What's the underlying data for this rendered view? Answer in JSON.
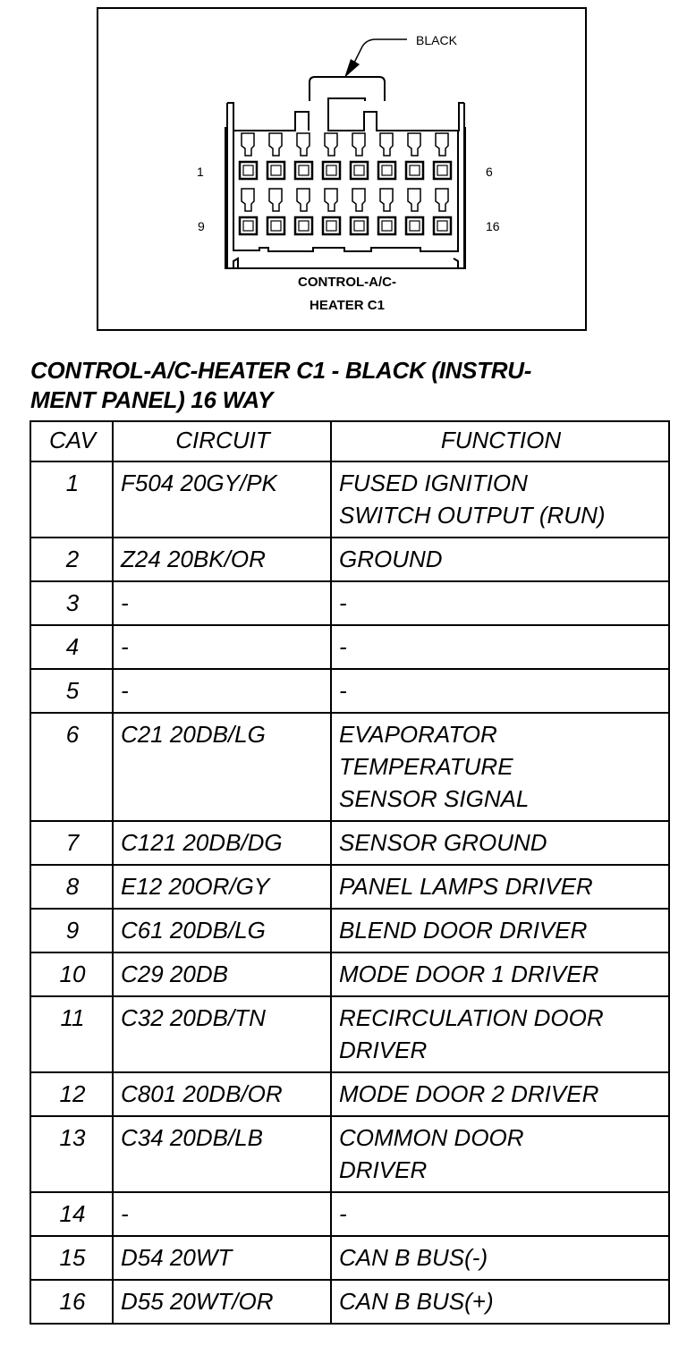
{
  "diagram": {
    "color_callout": "BLACK",
    "pin_labels": {
      "top_left": "1",
      "top_right": "6",
      "bottom_left": "9",
      "bottom_right": "16"
    },
    "caption_line1": "CONTROL-A/C-",
    "caption_line2": "HEATER C1"
  },
  "title": "CONTROL-A/C-HEATER C1 - BLACK (INSTRU-\nMENT PANEL) 16 WAY",
  "table": {
    "headers": {
      "cav": "CAV",
      "circuit": "CIRCUIT",
      "function": "FUNCTION"
    },
    "rows": [
      {
        "cav": "1",
        "circuit": "F504 20GY/PK",
        "function": "FUSED IGNITION\nSWITCH OUTPUT (RUN)"
      },
      {
        "cav": "2",
        "circuit": "Z24 20BK/OR",
        "function": "GROUND"
      },
      {
        "cav": "3",
        "circuit": "-",
        "function": "-"
      },
      {
        "cav": "4",
        "circuit": "-",
        "function": "-"
      },
      {
        "cav": "5",
        "circuit": "-",
        "function": "-"
      },
      {
        "cav": "6",
        "circuit": "C21 20DB/LG",
        "function": "EVAPORATOR\nTEMPERATURE\nSENSOR SIGNAL"
      },
      {
        "cav": "7",
        "circuit": "C121 20DB/DG",
        "function": "SENSOR GROUND"
      },
      {
        "cav": "8",
        "circuit": "E12 20OR/GY",
        "function": "PANEL LAMPS DRIVER"
      },
      {
        "cav": "9",
        "circuit": "C61 20DB/LG",
        "function": "BLEND DOOR DRIVER"
      },
      {
        "cav": "10",
        "circuit": "C29 20DB",
        "function": "MODE DOOR 1 DRIVER"
      },
      {
        "cav": "11",
        "circuit": "C32 20DB/TN",
        "function": "RECIRCULATION DOOR\nDRIVER"
      },
      {
        "cav": "12",
        "circuit": "C801 20DB/OR",
        "function": "MODE DOOR 2 DRIVER"
      },
      {
        "cav": "13",
        "circuit": "C34 20DB/LB",
        "function": "COMMON DOOR\nDRIVER"
      },
      {
        "cav": "14",
        "circuit": "-",
        "function": "-"
      },
      {
        "cav": "15",
        "circuit": "D54 20WT",
        "function": "CAN B BUS(-)"
      },
      {
        "cav": "16",
        "circuit": "D55 20WT/OR",
        "function": "CAN B BUS(+)"
      }
    ]
  }
}
